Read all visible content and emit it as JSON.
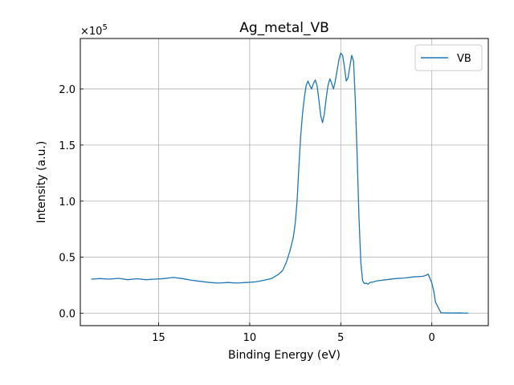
{
  "chart_data": {
    "type": "line",
    "title": "Ag_metal_VB",
    "xlabel": "Binding Energy (eV)",
    "ylabel": "Intensity (a.u.)",
    "y_multiplier_label": "×10",
    "y_multiplier_exponent": "5",
    "x_reversed": true,
    "xlim": [
      19.3,
      -3.1
    ],
    "ylim": [
      -11000,
      245000
    ],
    "x_ticks": [
      15,
      10,
      5,
      0
    ],
    "x_tick_labels": [
      "15",
      "10",
      "5",
      "0"
    ],
    "y_ticks": [
      0,
      50000,
      100000,
      150000,
      200000
    ],
    "y_tick_labels": [
      "0.0",
      "0.5",
      "1.0",
      "1.5",
      "2.0"
    ],
    "grid": true,
    "legend_position": "top-right",
    "series": [
      {
        "name": "VB",
        "color": "#1f77b4",
        "x": [
          18.7,
          18.2,
          17.7,
          17.2,
          16.7,
          16.2,
          15.7,
          15.2,
          14.7,
          14.2,
          13.7,
          13.2,
          12.7,
          12.2,
          11.7,
          11.2,
          10.7,
          10.2,
          9.7,
          9.2,
          8.8,
          8.4,
          8.2,
          8.0,
          7.8,
          7.6,
          7.5,
          7.4,
          7.3,
          7.2,
          7.1,
          7.0,
          6.9,
          6.8,
          6.7,
          6.6,
          6.5,
          6.4,
          6.3,
          6.2,
          6.1,
          6.0,
          5.9,
          5.8,
          5.7,
          5.6,
          5.5,
          5.4,
          5.3,
          5.2,
          5.1,
          5.0,
          4.9,
          4.8,
          4.7,
          4.6,
          4.5,
          4.4,
          4.3,
          4.2,
          4.1,
          4.0,
          3.9,
          3.8,
          3.7,
          3.6,
          3.5,
          3.4,
          3.2,
          3.0,
          2.5,
          2.0,
          1.5,
          1.0,
          0.5,
          0.3,
          0.2,
          0.1,
          0.0,
          -0.1,
          -0.2,
          -0.5,
          -1.0,
          -1.5,
          -2.0
        ],
        "y": [
          30500,
          31000,
          30500,
          31200,
          30000,
          30800,
          30000,
          30500,
          31000,
          32000,
          31000,
          29500,
          28500,
          27500,
          27000,
          27500,
          27000,
          27500,
          28000,
          29500,
          31000,
          35000,
          38000,
          45000,
          55000,
          68000,
          80000,
          100000,
          130000,
          158000,
          178000,
          192000,
          203000,
          207000,
          203000,
          200000,
          205000,
          208000,
          203000,
          190000,
          176000,
          170000,
          178000,
          192000,
          203000,
          209000,
          205000,
          200000,
          207000,
          217000,
          226000,
          232000,
          230000,
          220000,
          207000,
          210000,
          220000,
          230000,
          225000,
          190000,
          140000,
          85000,
          45000,
          29000,
          26500,
          27000,
          26000,
          27500,
          28000,
          29000,
          30000,
          31000,
          31500,
          32500,
          33000,
          34000,
          35000,
          31000,
          27000,
          20000,
          10000,
          500,
          200,
          300,
          100
        ]
      }
    ]
  }
}
